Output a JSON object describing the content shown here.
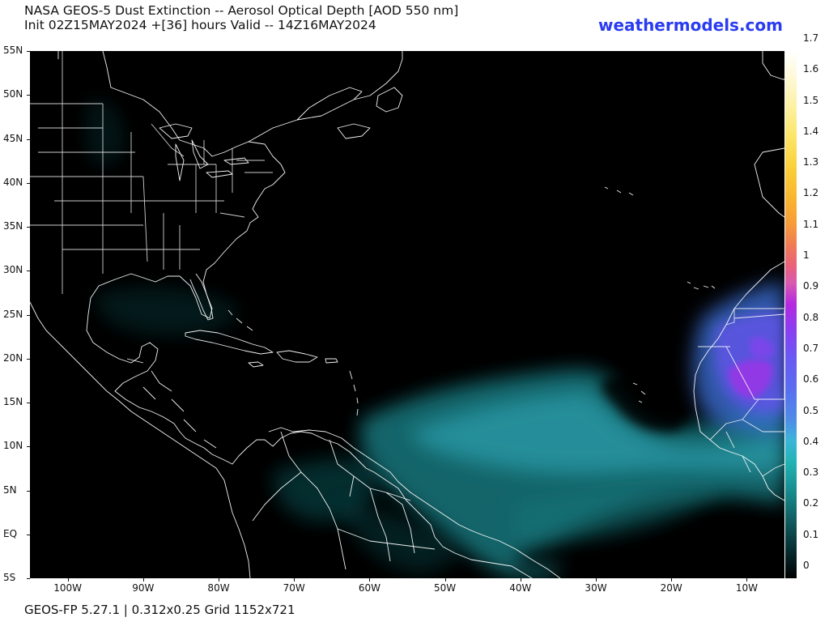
{
  "header": {
    "title_line1": "NASA GEOS-5 Dust Extinction -- Aerosol Optical Depth [AOD 550 nm]",
    "title_line2": "Init 02Z15MAY2024 +[36] hours Valid -- 14Z16MAY2024",
    "brand": "weathermodels.com"
  },
  "map": {
    "lat_labels": [
      "55N",
      "50N",
      "45N",
      "40N",
      "35N",
      "30N",
      "25N",
      "20N",
      "15N",
      "10N",
      "5N",
      "EQ",
      "5S"
    ],
    "lon_labels": [
      "100W",
      "90W",
      "80W",
      "70W",
      "60W",
      "50W",
      "40W",
      "30W",
      "20W",
      "10W"
    ],
    "lat_range": [
      -5,
      55
    ],
    "lon_range": [
      -105,
      -5
    ],
    "plume_color": "#22b3b4",
    "core_color": "#8a3ff0"
  },
  "colorbar": {
    "labels": [
      "1.7",
      "1.6",
      "1.5",
      "1.4",
      "1.3",
      "1.2",
      "1.1",
      "1",
      "0.9",
      "0.8",
      "0.7",
      "0.6",
      "0.5",
      "0.4",
      "0.3",
      "0.2",
      "0.1",
      "0"
    ],
    "range": [
      0,
      1.7
    ]
  },
  "footer": {
    "text": "GEOS-FP 5.27.1 | 0.312x0.25 Grid 1152x721"
  }
}
